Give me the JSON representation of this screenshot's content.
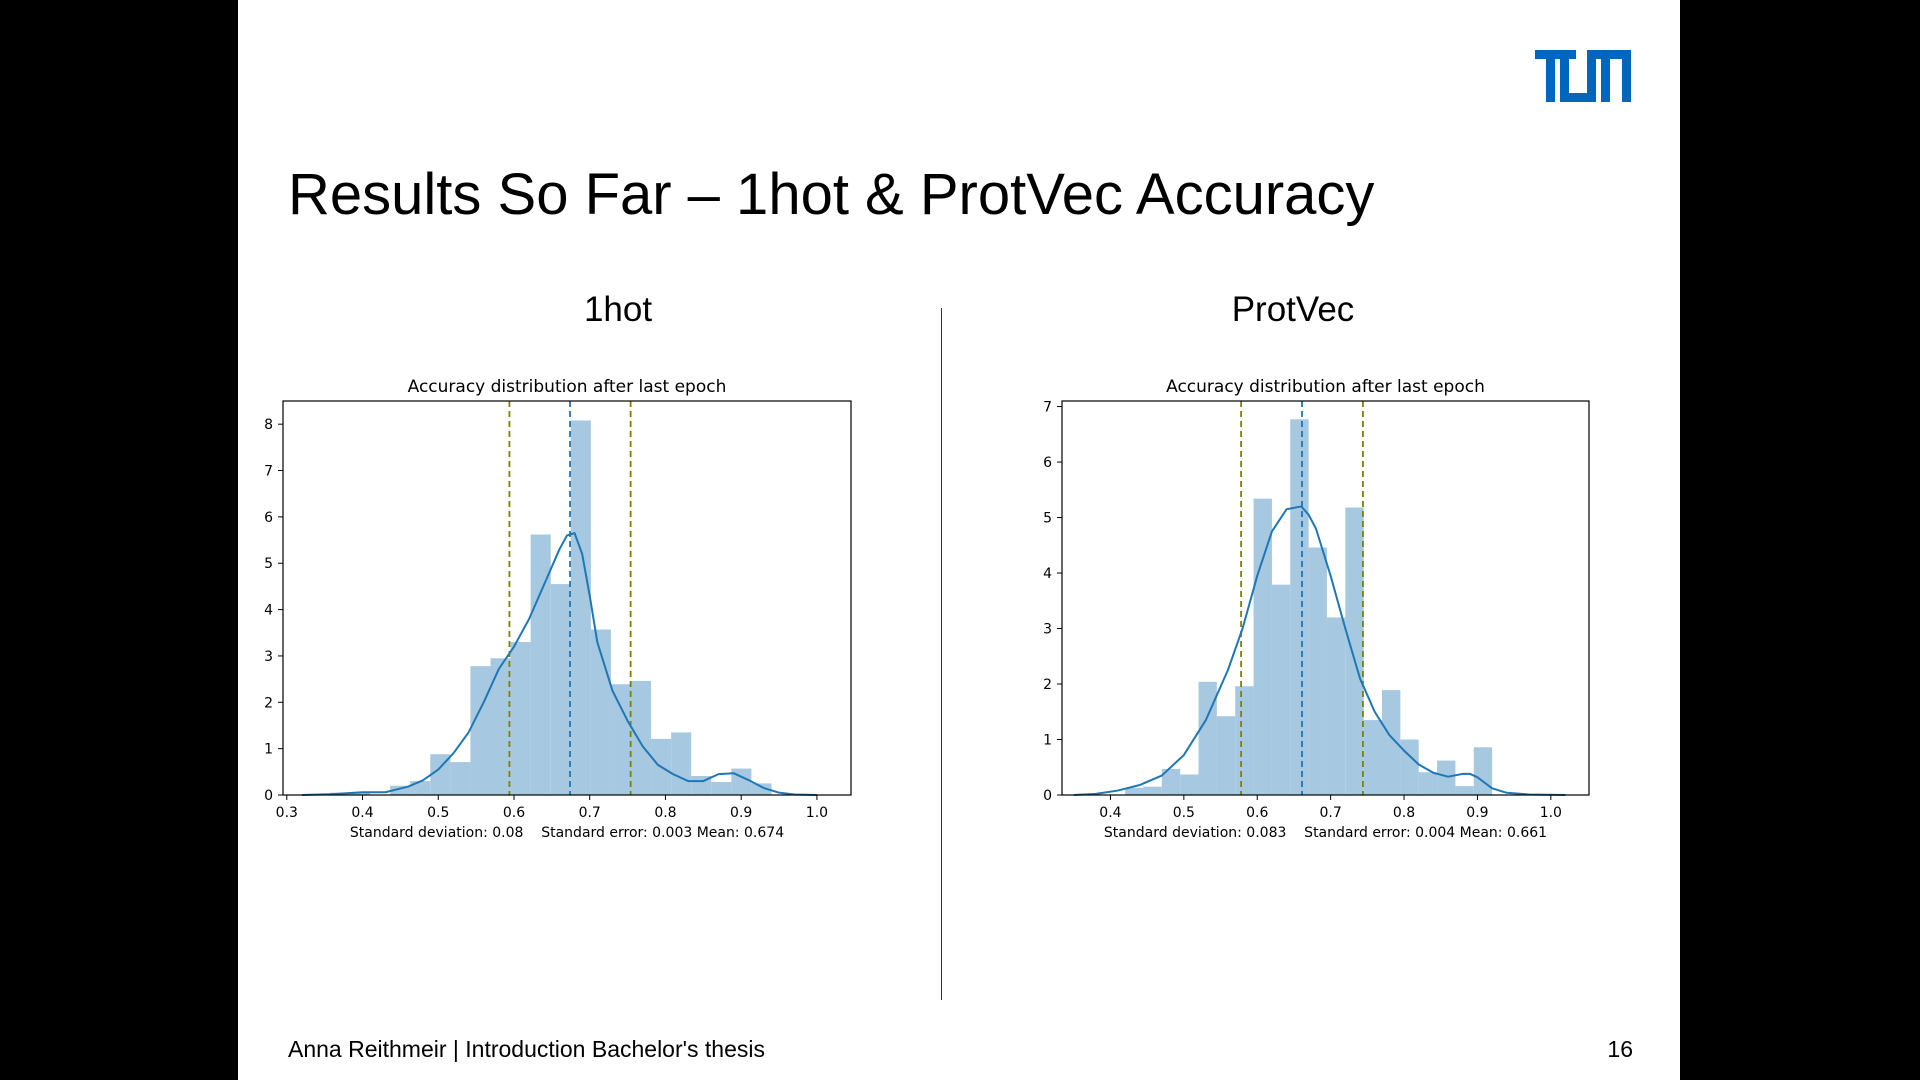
{
  "slide": {
    "title": "Results So Far – 1hot & ProtVec Accuracy",
    "logo_text": "TUM",
    "logo_color": "#0065bd",
    "footer_left": "Anna Reithmeir | Introduction Bachelor's thesis",
    "page_number": "16"
  },
  "panels": [
    {
      "heading": "1hot"
    },
    {
      "heading": "ProtVec"
    }
  ],
  "chart_data": [
    {
      "type": "bar",
      "title": "Accuracy distribution after last epoch",
      "xlabel": "Standard deviation: 0.08    Standard error: 0.003 Mean: 0.674",
      "ylabel": "",
      "xlim": [
        0.295,
        1.045
      ],
      "ylim": [
        0,
        8.5
      ],
      "xticks": [
        0.3,
        0.4,
        0.5,
        0.6,
        0.7,
        0.8,
        0.9,
        1.0
      ],
      "xtick_labels": [
        "0.3",
        "0.4",
        "0.5",
        "0.6",
        "0.7",
        "0.8",
        "0.9",
        "1.0"
      ],
      "yticks": [
        0,
        1,
        2,
        3,
        4,
        5,
        6,
        7,
        8
      ],
      "ytick_labels": [
        "0",
        "1",
        "2",
        "3",
        "4",
        "5",
        "6",
        "7",
        "8"
      ],
      "grid": false,
      "bin_edges": [
        0.357,
        0.3835,
        0.41,
        0.4365,
        0.463,
        0.4895,
        0.516,
        0.5425,
        0.569,
        0.5955,
        0.622,
        0.6485,
        0.675,
        0.7015,
        0.728,
        0.7545,
        0.781,
        0.8075,
        0.834,
        0.8605,
        0.887,
        0.9135,
        0.94
      ],
      "counts": [
        0.05,
        0.05,
        0.0,
        0.2,
        0.3,
        0.88,
        0.71,
        2.78,
        2.95,
        3.3,
        5.62,
        4.55,
        8.08,
        3.57,
        2.39,
        2.46,
        1.21,
        1.35,
        0.41,
        0.28,
        0.57,
        0.25
      ],
      "kde": {
        "x": [
          0.32,
          0.36,
          0.4,
          0.43,
          0.46,
          0.48,
          0.5,
          0.52,
          0.54,
          0.56,
          0.58,
          0.6,
          0.62,
          0.64,
          0.66,
          0.67,
          0.68,
          0.69,
          0.7,
          0.71,
          0.73,
          0.75,
          0.77,
          0.79,
          0.81,
          0.83,
          0.85,
          0.87,
          0.89,
          0.91,
          0.93,
          0.95,
          0.97,
          1.0
        ],
        "y": [
          0.0,
          0.02,
          0.06,
          0.06,
          0.18,
          0.32,
          0.55,
          0.9,
          1.35,
          2.0,
          2.72,
          3.2,
          3.8,
          4.55,
          5.3,
          5.6,
          5.65,
          5.2,
          4.3,
          3.3,
          2.25,
          1.6,
          1.05,
          0.65,
          0.45,
          0.3,
          0.3,
          0.45,
          0.47,
          0.32,
          0.15,
          0.05,
          0.01,
          0.0
        ]
      },
      "vlines": [
        {
          "name": "mean",
          "x": 0.674,
          "color": "#1f77b4"
        },
        {
          "name": "mean-minus-std",
          "x": 0.594,
          "color": "#808000"
        },
        {
          "name": "mean-plus-std",
          "x": 0.754,
          "color": "#808000"
        }
      ],
      "bar_color": "#a6c8e1",
      "kde_color": "#1f77b4"
    },
    {
      "type": "bar",
      "title": "Accuracy distribution after last epoch",
      "xlabel": "Standard deviation: 0.083    Standard error: 0.004 Mean: 0.661",
      "ylabel": "",
      "xlim": [
        0.334,
        1.052
      ],
      "ylim": [
        0,
        7.1
      ],
      "xticks": [
        0.4,
        0.5,
        0.6,
        0.7,
        0.8,
        0.9,
        1.0
      ],
      "xtick_labels": [
        "0.4",
        "0.5",
        "0.6",
        "0.7",
        "0.8",
        "0.9",
        "1.0"
      ],
      "yticks": [
        0,
        1,
        2,
        3,
        4,
        5,
        6,
        7
      ],
      "ytick_labels": [
        "0",
        "1",
        "2",
        "3",
        "4",
        "5",
        "6",
        "7"
      ],
      "grid": false,
      "bin_edges": [
        0.42,
        0.445,
        0.47,
        0.495,
        0.52,
        0.545,
        0.57,
        0.595,
        0.62,
        0.645,
        0.67,
        0.695,
        0.72,
        0.745,
        0.77,
        0.795,
        0.82,
        0.845,
        0.87,
        0.895,
        0.92
      ],
      "counts": [
        0.13,
        0.15,
        0.47,
        0.37,
        2.04,
        1.42,
        1.96,
        5.34,
        3.79,
        6.77,
        4.46,
        3.2,
        5.18,
        1.35,
        1.89,
        1.0,
        0.41,
        0.62,
        0.16,
        0.86
      ],
      "kde": {
        "x": [
          0.35,
          0.38,
          0.41,
          0.44,
          0.47,
          0.5,
          0.53,
          0.56,
          0.58,
          0.6,
          0.62,
          0.64,
          0.66,
          0.67,
          0.68,
          0.7,
          0.72,
          0.74,
          0.76,
          0.78,
          0.8,
          0.82,
          0.84,
          0.86,
          0.88,
          0.89,
          0.9,
          0.92,
          0.94,
          0.97,
          1.02
        ],
        "y": [
          0.0,
          0.02,
          0.08,
          0.18,
          0.35,
          0.72,
          1.35,
          2.25,
          3.0,
          3.95,
          4.75,
          5.15,
          5.2,
          5.05,
          4.8,
          3.95,
          3.0,
          2.1,
          1.5,
          1.08,
          0.8,
          0.55,
          0.4,
          0.33,
          0.38,
          0.38,
          0.32,
          0.12,
          0.04,
          0.01,
          0.0
        ]
      },
      "vlines": [
        {
          "name": "mean",
          "x": 0.661,
          "color": "#1f77b4"
        },
        {
          "name": "mean-minus-std",
          "x": 0.578,
          "color": "#808000"
        },
        {
          "name": "mean-plus-std",
          "x": 0.744,
          "color": "#808000"
        }
      ],
      "bar_color": "#a6c8e1",
      "kde_color": "#1f77b4"
    }
  ]
}
